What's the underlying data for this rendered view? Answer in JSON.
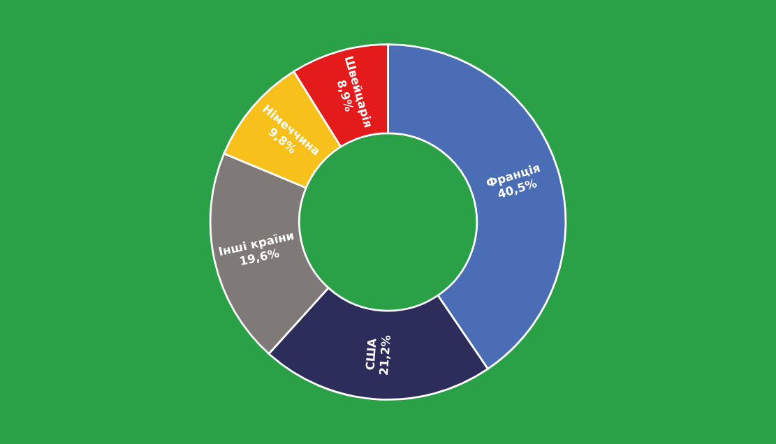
{
  "chart_data": {
    "type": "donut",
    "categories": [
      "Франція",
      "США",
      "Інші країни",
      "Німеччина",
      "Швейцарія"
    ],
    "values": [
      40.5,
      21.2,
      19.6,
      9.8,
      8.9
    ],
    "colors": [
      "#4a6db5",
      "#2c2d5a",
      "#7f7a78",
      "#f7c01a",
      "#e31b1b"
    ],
    "value_labels": [
      "40,5%",
      "21,2%",
      "19,6%",
      "9,8%",
      "8,9%"
    ],
    "legend": false
  }
}
